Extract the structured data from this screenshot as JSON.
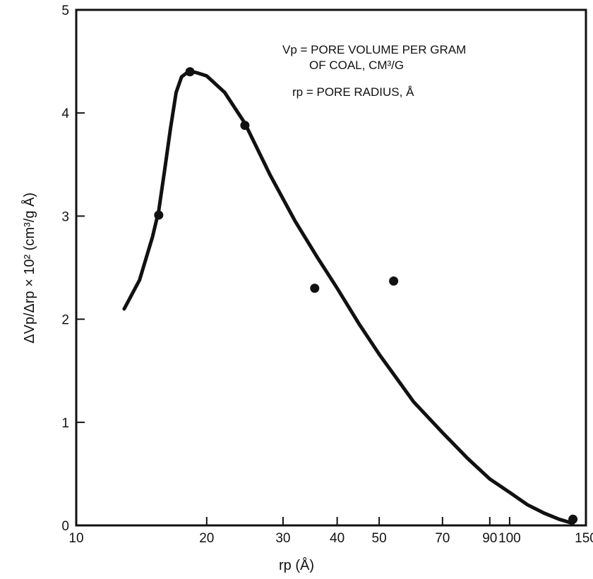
{
  "chart_data": {
    "type": "scatter",
    "x_scale": "log",
    "xlim": [
      10,
      150
    ],
    "ylim": [
      0,
      5
    ],
    "x_ticks": [
      10,
      20,
      30,
      40,
      50,
      70,
      90,
      100,
      150
    ],
    "x_tick_labels": [
      "10",
      "20",
      "30",
      "40",
      "50",
      "70",
      "90",
      "100",
      "150"
    ],
    "y_ticks": [
      0,
      1,
      2,
      3,
      4,
      5
    ],
    "y_tick_labels": [
      "0",
      "1",
      "2",
      "3",
      "4",
      "5"
    ],
    "xlabel": "rp (Å)",
    "ylabel": "ΔVp/Δrp × 10² (cm³/g Å)",
    "annotations": [
      "Vp = PORE VOLUME PER GRAM",
      "OF COAL, CM³/G",
      "rp = PORE RADIUS, Å"
    ],
    "grid": false,
    "series": [
      {
        "kind": "points",
        "x": [
          15.5,
          18.3,
          24.5,
          35.5,
          54,
          140
        ],
        "y": [
          3.01,
          4.4,
          3.88,
          2.3,
          2.37,
          0.06
        ]
      },
      {
        "kind": "fitted_curve",
        "x": [
          12.9,
          14,
          15,
          15.5,
          16,
          16.5,
          17,
          17.5,
          18,
          18.5,
          19,
          20,
          22,
          24.5,
          28,
          32,
          36,
          40,
          45,
          50,
          55,
          60,
          70,
          80,
          90,
          100,
          110,
          120,
          130,
          140
        ],
        "y": [
          2.1,
          2.38,
          2.8,
          3.05,
          3.45,
          3.85,
          4.2,
          4.35,
          4.39,
          4.4,
          4.39,
          4.36,
          4.2,
          3.9,
          3.4,
          2.95,
          2.6,
          2.3,
          1.95,
          1.66,
          1.42,
          1.2,
          0.9,
          0.65,
          0.45,
          0.32,
          0.2,
          0.12,
          0.06,
          0.02
        ]
      }
    ]
  }
}
